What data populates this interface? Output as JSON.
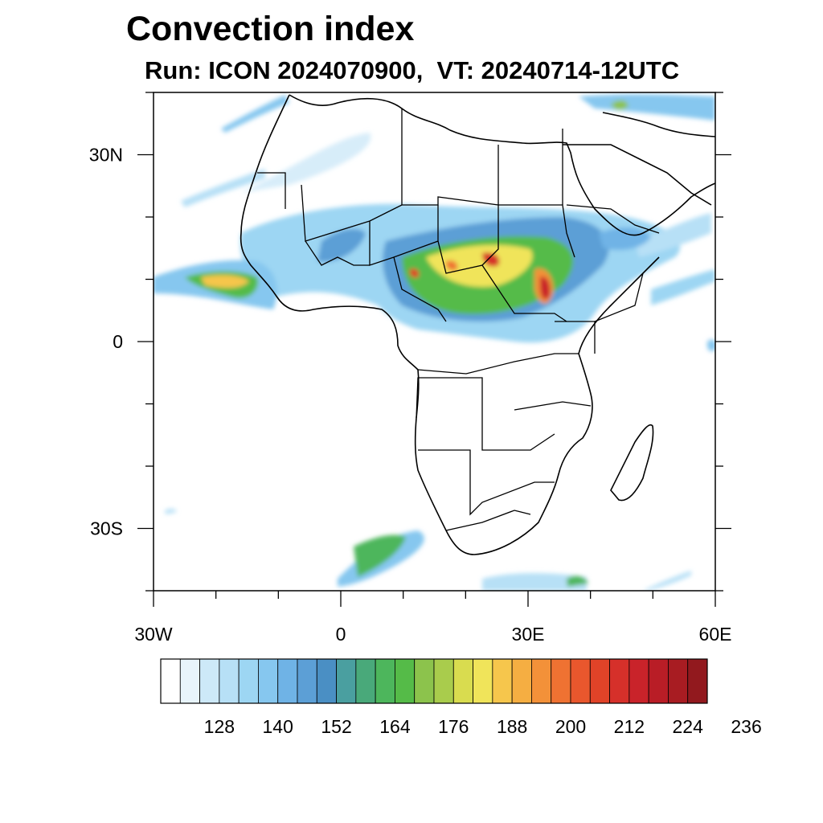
{
  "header": {
    "title": "Convection index",
    "subtitle": "Run: ICON 2024070900,  VT: 20240714-12UTC"
  },
  "map": {
    "extent": {
      "lon": [
        -30,
        60
      ],
      "lat": [
        -40,
        40
      ]
    },
    "lat_ticks": [
      {
        "value": 30,
        "label": "30N"
      },
      {
        "value": 0,
        "label": "0"
      },
      {
        "value": -30,
        "label": "30S"
      }
    ],
    "lon_ticks": [
      {
        "value": -30,
        "label": "30W"
      },
      {
        "value": 0,
        "label": "0"
      },
      {
        "value": 30,
        "label": "30E"
      },
      {
        "value": 60,
        "label": "60E"
      }
    ]
  },
  "colorbar": {
    "colors": [
      "#ffffff",
      "#e8f4fb",
      "#cde9f8",
      "#b7e0f6",
      "#9dd6f3",
      "#86c7ef",
      "#6fb3e6",
      "#5c9fd6",
      "#4a8fc4",
      "#4a9fa0",
      "#49a97a",
      "#4db65c",
      "#55bb48",
      "#8cc34c",
      "#a9cc4c",
      "#d9dc4f",
      "#f0e45a",
      "#f6c64c",
      "#f5ae42",
      "#f39139",
      "#ef7232",
      "#e9572d",
      "#e04328",
      "#d6302a",
      "#c9232a",
      "#b91d26",
      "#a81c22",
      "#92191e"
    ],
    "labels": [
      "128",
      "140",
      "152",
      "164",
      "176",
      "188",
      "200",
      "212",
      "224",
      "236"
    ]
  }
}
